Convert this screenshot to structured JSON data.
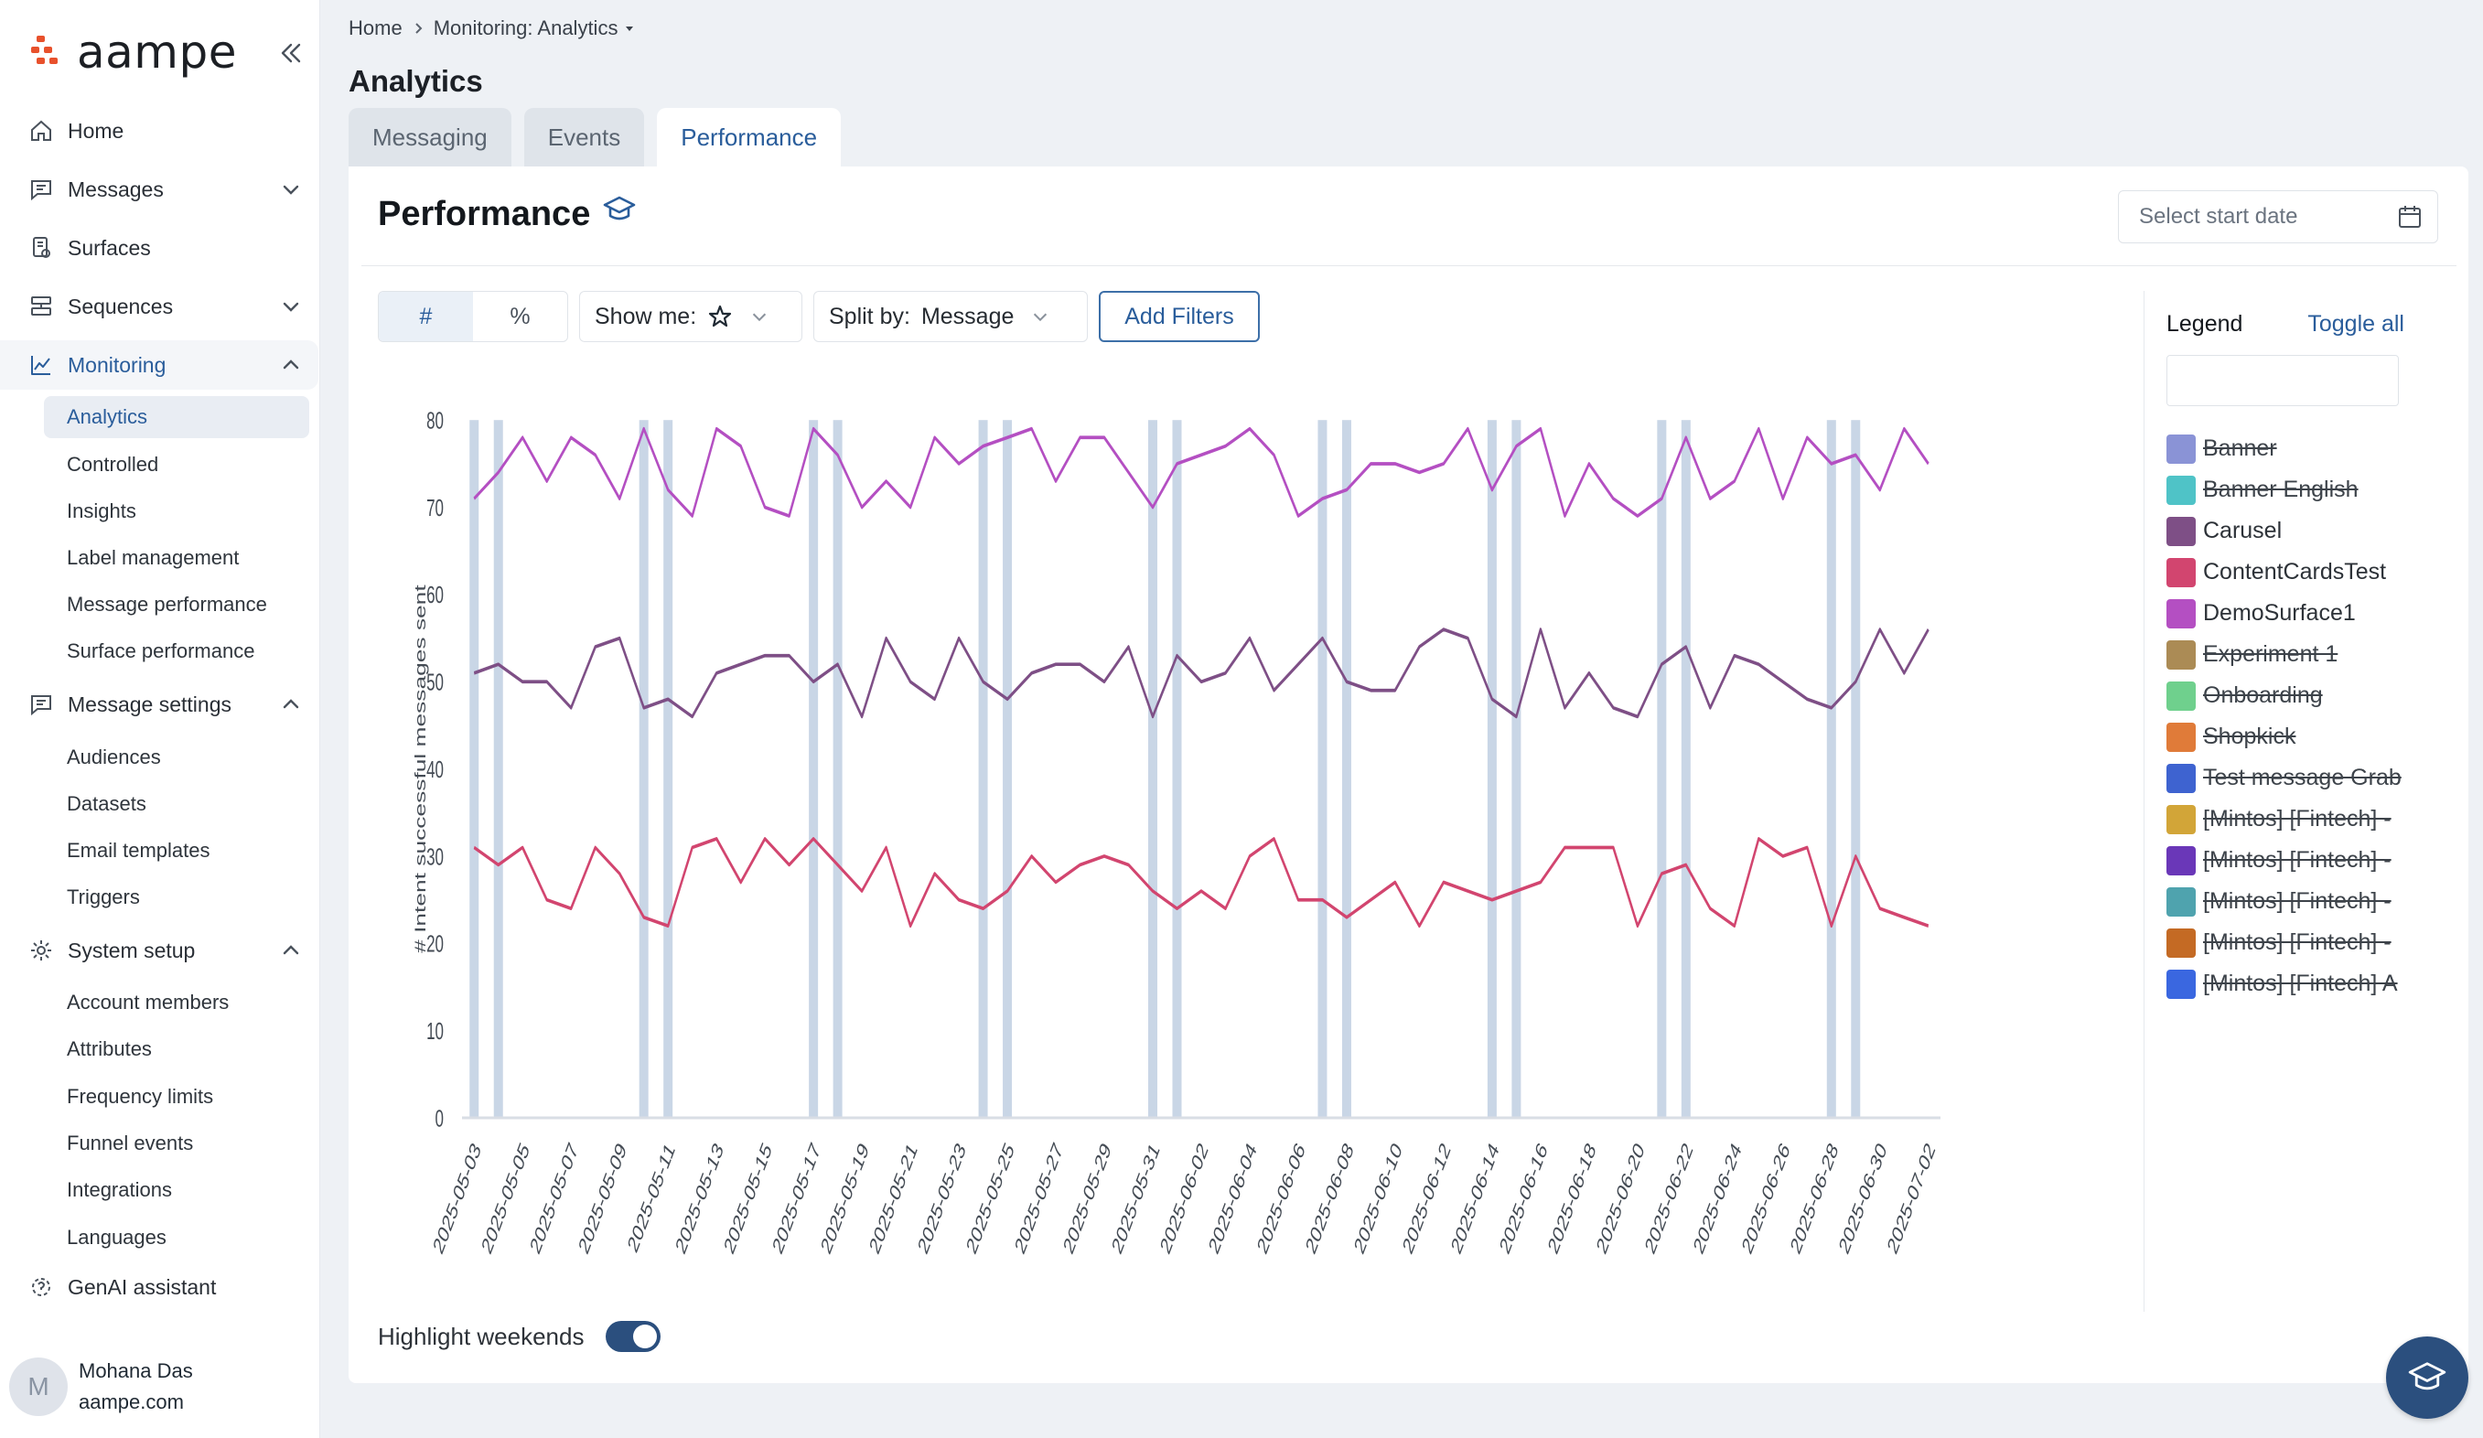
{
  "app": {
    "logo_text": "aampe"
  },
  "sidebar": {
    "items": [
      {
        "label": "Home",
        "icon": "home-icon"
      },
      {
        "label": "Messages",
        "icon": "message-icon"
      },
      {
        "label": "Surfaces",
        "icon": "surface-icon"
      },
      {
        "label": "Sequences",
        "icon": "sequence-icon"
      },
      {
        "label": "Monitoring",
        "icon": "chart-line-icon"
      },
      {
        "label": "Message settings",
        "icon": "message-settings-icon"
      },
      {
        "label": "System setup",
        "icon": "gear-icon"
      },
      {
        "label": "GenAI assistant",
        "icon": "genai-icon"
      }
    ],
    "monitoring_sub": [
      "Analytics",
      "Controlled",
      "Insights",
      "Label management",
      "Message performance",
      "Surface performance"
    ],
    "message_settings_sub": [
      "Audiences",
      "Datasets",
      "Email templates",
      "Triggers"
    ],
    "system_setup_sub": [
      "Account members",
      "Attributes",
      "Frequency limits",
      "Funnel events",
      "Integrations",
      "Languages"
    ]
  },
  "user": {
    "initial": "M",
    "name": "Mohana Das",
    "org": "aampe.com"
  },
  "breadcrumb": {
    "home": "Home",
    "current": "Monitoring: Analytics"
  },
  "page": {
    "title": "Analytics"
  },
  "tabs": [
    "Messaging",
    "Events",
    "Performance"
  ],
  "panel": {
    "title": "Performance",
    "date_placeholder": "Select start date",
    "unit_toggle": [
      "#",
      "%"
    ],
    "show_me_label": "Show me:",
    "split_by_label": "Split by:",
    "split_by_value": "Message",
    "add_filters": "Add Filters",
    "highlight_weekends": "Highlight weekends",
    "highlight_weekends_on": true
  },
  "legend": {
    "title": "Legend",
    "toggle_all": "Toggle all",
    "items": [
      {
        "label": "Banner",
        "color": "#8a93d6",
        "enabled": false
      },
      {
        "label": "Banner English",
        "color": "#4fc3c7",
        "enabled": false
      },
      {
        "label": "Carusel",
        "color": "#7e4f86",
        "enabled": true
      },
      {
        "label": "ContentCardsTest",
        "color": "#d2456f",
        "enabled": true
      },
      {
        "label": "DemoSurface1",
        "color": "#b44fc2",
        "enabled": true
      },
      {
        "label": "Experiment 1",
        "color": "#ab8b55",
        "enabled": false
      },
      {
        "label": "Onboarding",
        "color": "#6fd08d",
        "enabled": false
      },
      {
        "label": "Shopkick",
        "color": "#e07b39",
        "enabled": false
      },
      {
        "label": "Test message Grab",
        "color": "#3e63d0",
        "enabled": false
      },
      {
        "label": "[Mintos] [Fintech] -",
        "color": "#d2a538",
        "enabled": false
      },
      {
        "label": "[Mintos] [Fintech] -",
        "color": "#6a37b8",
        "enabled": false
      },
      {
        "label": "[Mintos] [Fintech] -",
        "color": "#4fa3ae",
        "enabled": false
      },
      {
        "label": "[Mintos] [Fintech] -",
        "color": "#c46a24",
        "enabled": false
      },
      {
        "label": "[Mintos] [Fintech] A",
        "color": "#3a67e0",
        "enabled": false
      }
    ]
  },
  "chart_data": {
    "type": "line",
    "title": "",
    "xlabel": "",
    "ylabel": "# Intent successful messages sent",
    "ylim": [
      0,
      80
    ],
    "yticks": [
      0,
      10,
      20,
      30,
      40,
      50,
      60,
      70,
      80
    ],
    "grid": false,
    "legend_position": "right",
    "x": [
      "2025-05-03",
      "2025-05-04",
      "2025-05-05",
      "2025-05-06",
      "2025-05-07",
      "2025-05-08",
      "2025-05-09",
      "2025-05-10",
      "2025-05-11",
      "2025-05-12",
      "2025-05-13",
      "2025-05-14",
      "2025-05-15",
      "2025-05-16",
      "2025-05-17",
      "2025-05-18",
      "2025-05-19",
      "2025-05-20",
      "2025-05-21",
      "2025-05-22",
      "2025-05-23",
      "2025-05-24",
      "2025-05-25",
      "2025-05-26",
      "2025-05-27",
      "2025-05-28",
      "2025-05-29",
      "2025-05-30",
      "2025-05-31",
      "2025-06-01",
      "2025-06-02",
      "2025-06-03",
      "2025-06-04",
      "2025-06-05",
      "2025-06-06",
      "2025-06-07",
      "2025-06-08",
      "2025-06-09",
      "2025-06-10",
      "2025-06-11",
      "2025-06-12",
      "2025-06-13",
      "2025-06-14",
      "2025-06-15",
      "2025-06-16",
      "2025-06-17",
      "2025-06-18",
      "2025-06-19",
      "2025-06-20",
      "2025-06-21",
      "2025-06-22",
      "2025-06-23",
      "2025-06-24",
      "2025-06-25",
      "2025-06-26",
      "2025-06-27",
      "2025-06-28",
      "2025-06-29",
      "2025-06-30",
      "2025-07-01",
      "2025-07-02"
    ],
    "xtick_labels": [
      "2025-05-03",
      "2025-05-05",
      "2025-05-07",
      "2025-05-09",
      "2025-05-11",
      "2025-05-13",
      "2025-05-15",
      "2025-05-17",
      "2025-05-19",
      "2025-05-21",
      "2025-05-23",
      "2025-05-25",
      "2025-05-27",
      "2025-05-29",
      "2025-05-31",
      "2025-06-02",
      "2025-06-04",
      "2025-06-06",
      "2025-06-08",
      "2025-06-10",
      "2025-06-12",
      "2025-06-14",
      "2025-06-16",
      "2025-06-18",
      "2025-06-20",
      "2025-06-22",
      "2025-06-24",
      "2025-06-26",
      "2025-06-28",
      "2025-06-30",
      "2025-07-02"
    ],
    "weekend_highlight_color": "#c9d6e6",
    "series": [
      {
        "name": "DemoSurface1",
        "color": "#b44fc2",
        "values": [
          71,
          74,
          78,
          73,
          78,
          76,
          71,
          79,
          72,
          69,
          79,
          77,
          70,
          69,
          79,
          76,
          70,
          73,
          70,
          78,
          75,
          77,
          78,
          79,
          73,
          78,
          78,
          74,
          70,
          75,
          76,
          77,
          79,
          76,
          69,
          71,
          72,
          75,
          75,
          74,
          75,
          79,
          72,
          77,
          79,
          69,
          75,
          71,
          69,
          71,
          78,
          71,
          73,
          79,
          71,
          78,
          75,
          76,
          72,
          79,
          75
        ]
      },
      {
        "name": "Carusel",
        "color": "#7e4f86",
        "values": [
          51,
          52,
          50,
          50,
          47,
          54,
          55,
          47,
          48,
          46,
          51,
          52,
          53,
          53,
          50,
          52,
          46,
          55,
          50,
          48,
          55,
          50,
          48,
          51,
          52,
          52,
          50,
          54,
          46,
          53,
          50,
          51,
          55,
          49,
          52,
          55,
          50,
          49,
          49,
          54,
          56,
          55,
          48,
          46,
          56,
          47,
          51,
          47,
          46,
          52,
          54,
          47,
          53,
          52,
          50,
          48,
          47,
          50,
          56,
          51,
          56
        ]
      },
      {
        "name": "ContentCardsTest",
        "color": "#d2456f",
        "values": [
          31,
          29,
          31,
          25,
          24,
          31,
          28,
          23,
          22,
          31,
          32,
          27,
          32,
          29,
          32,
          29,
          26,
          31,
          22,
          28,
          25,
          24,
          26,
          30,
          27,
          29,
          30,
          29,
          26,
          24,
          26,
          24,
          30,
          32,
          25,
          25,
          23,
          25,
          27,
          22,
          27,
          26,
          25,
          26,
          27,
          31,
          31,
          31,
          22,
          28,
          29,
          24,
          22,
          32,
          30,
          31,
          22,
          30,
          24,
          23,
          22
        ]
      }
    ]
  }
}
